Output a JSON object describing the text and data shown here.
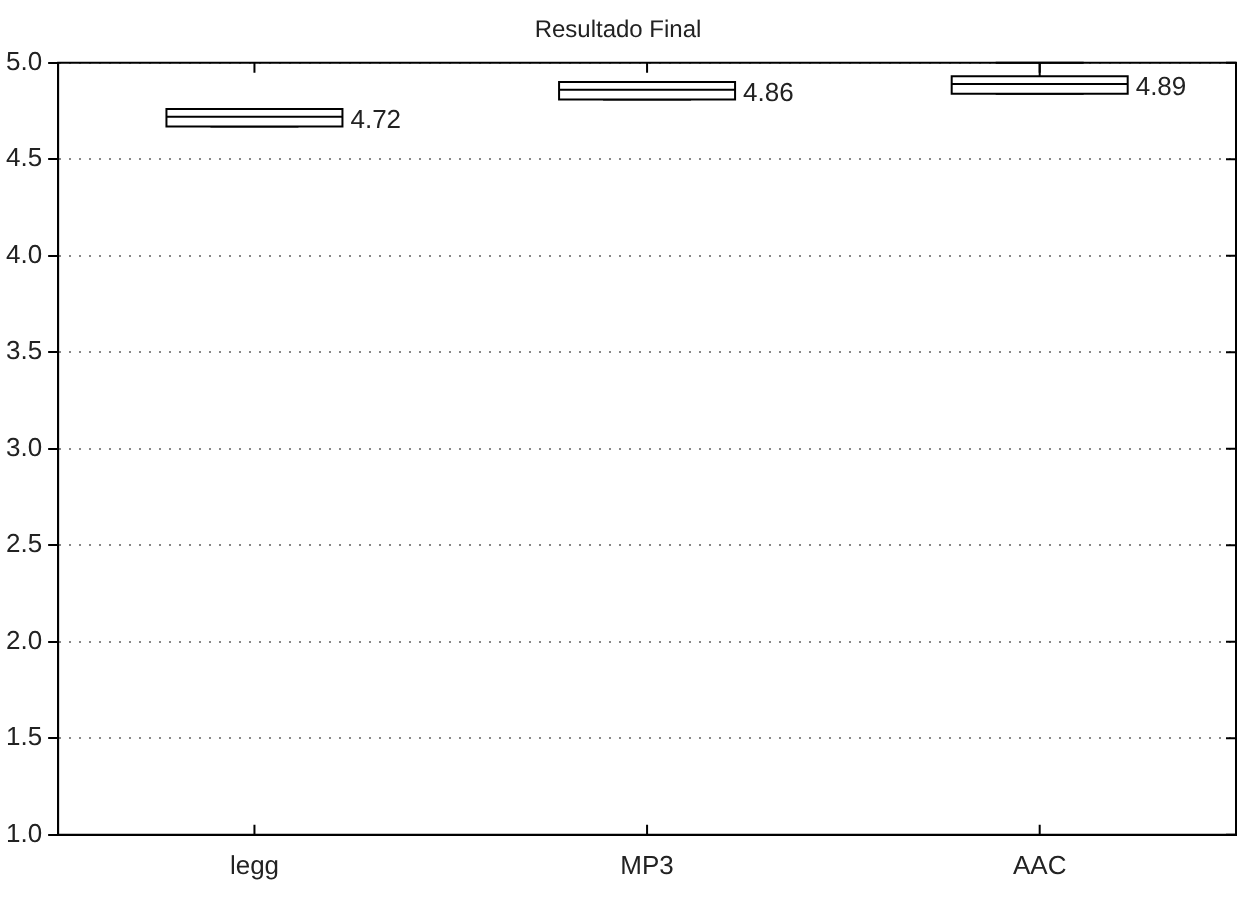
{
  "chart_data": {
    "type": "box",
    "title": "Resultado Final",
    "categories": [
      "legg",
      "MP3",
      "AAC"
    ],
    "boxes": [
      {
        "low": 4.67,
        "q1": 4.67,
        "median": 4.72,
        "q3": 4.76,
        "high": 4.76
      },
      {
        "low": 4.81,
        "q1": 4.81,
        "median": 4.86,
        "q3": 4.9,
        "high": 4.9
      },
      {
        "low": 4.84,
        "q1": 4.84,
        "median": 4.89,
        "q3": 4.93,
        "high": 5.0
      }
    ],
    "ylim": [
      1.0,
      5.0
    ],
    "yticks": [
      {
        "value": 1,
        "label": "1.0"
      },
      {
        "value": 1.5,
        "label": "1.5"
      },
      {
        "value": 2,
        "label": "2.0"
      },
      {
        "value": 2.5,
        "label": "2.5"
      },
      {
        "value": 3,
        "label": "3.0"
      },
      {
        "value": 3.5,
        "label": "3.5"
      },
      {
        "value": 4,
        "label": "4.0"
      },
      {
        "value": 4.5,
        "label": "4.5"
      },
      {
        "value": 5,
        "label": "5.0"
      }
    ],
    "value_labels": [
      "4.72",
      "4.86",
      "4.89"
    ],
    "grid": "y"
  }
}
